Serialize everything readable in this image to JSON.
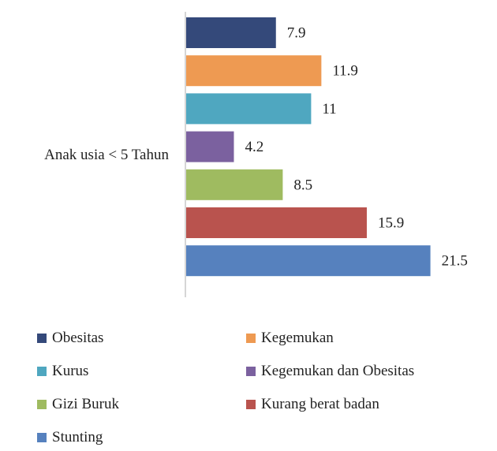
{
  "chart_data": {
    "type": "bar",
    "orientation": "horizontal",
    "title": "",
    "xlabel": "",
    "ylabel": "",
    "categories": [
      "Anak usia < 5 Tahun"
    ],
    "xlim": [
      0,
      25
    ],
    "grid": false,
    "legend_position": "bottom",
    "series": [
      {
        "name": "Obesitas",
        "values": [
          7.9
        ],
        "color": "#34497A",
        "label": "7.9"
      },
      {
        "name": "Kegemukan",
        "values": [
          11.9
        ],
        "color": "#EE9A52",
        "label": "11.9"
      },
      {
        "name": "Kurus",
        "values": [
          11
        ],
        "color": "#4FA7C0",
        "label": "11"
      },
      {
        "name": "Kegemukan dan Obesitas",
        "values": [
          4.2
        ],
        "color": "#7B619F",
        "label": "4.2"
      },
      {
        "name": "Gizi Buruk",
        "values": [
          8.5
        ],
        "color": "#9FBB60",
        "label": "8.5"
      },
      {
        "name": "Kurang berat badan",
        "values": [
          15.9
        ],
        "color": "#B9534E",
        "label": "15.9"
      },
      {
        "name": "Stunting",
        "values": [
          21.5
        ],
        "color": "#5681BE",
        "label": "21.5"
      }
    ]
  }
}
